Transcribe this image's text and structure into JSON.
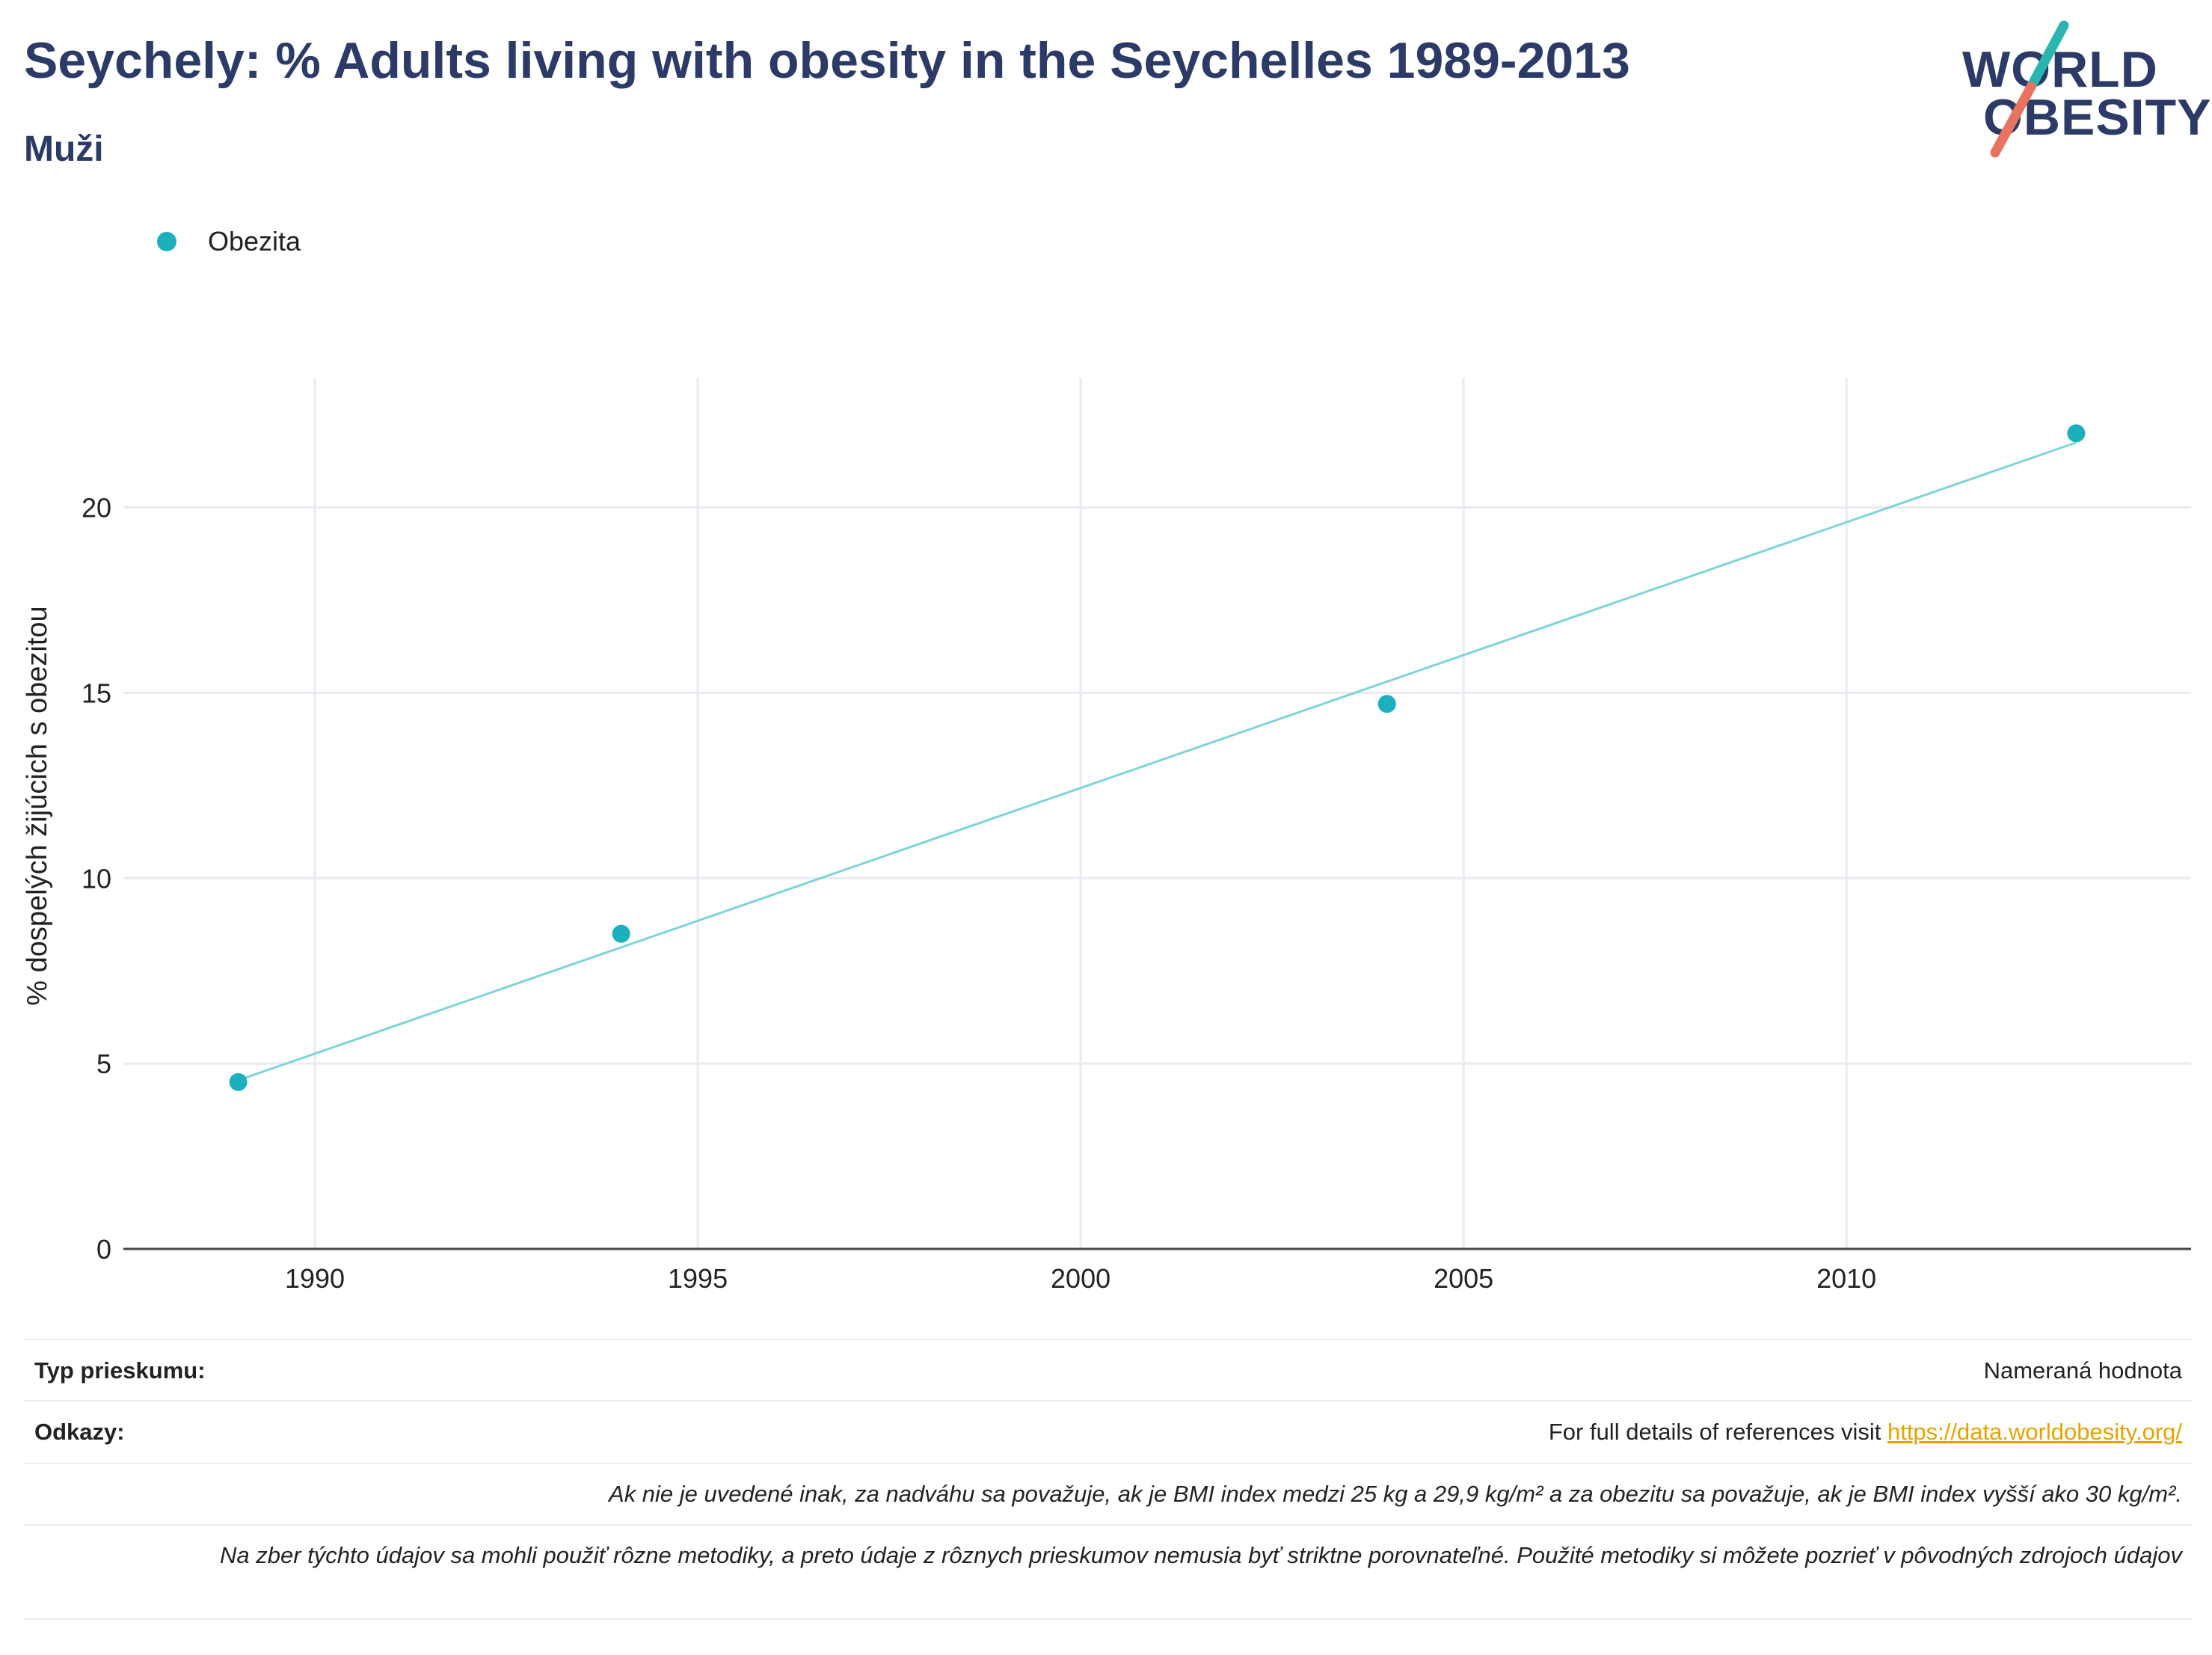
{
  "title": "Seychely: % Adults living with obesity in the Seychelles 1989-2013",
  "subtitle": "Muži",
  "logo": {
    "line1": "WORLD",
    "line2": "OBESITY"
  },
  "colors": {
    "series": "#1ab1bd",
    "trend": "#7fd4db",
    "title": "#2b3a67",
    "link": "#e6a300"
  },
  "chart_data": {
    "type": "scatter",
    "title": "Seychely: % Adults living with obesity in the Seychelles 1989-2013",
    "subtitle": "Muži",
    "xlabel": "",
    "ylabel": "% dospelých žijúcich s obezitou",
    "xlim": [
      1987.5,
      2014.5
    ],
    "ylim": [
      0,
      23.5
    ],
    "xticks": [
      1990,
      1995,
      2000,
      2005,
      2010
    ],
    "yticks": [
      0,
      5,
      10,
      15,
      20
    ],
    "grid": true,
    "legend_position": "top-left",
    "series": [
      {
        "name": "Obezita",
        "x": [
          1989,
          1994,
          2004,
          2013
        ],
        "y": [
          4.5,
          8.5,
          14.7,
          22.0
        ]
      }
    ],
    "trendline": {
      "x": [
        1989,
        2013
      ],
      "y": [
        4.55,
        21.75
      ]
    }
  },
  "footer": {
    "survey_type_label": "Typ prieskumu:",
    "survey_type_value": "Nameraná hodnota",
    "references_label": "Odkazy:",
    "references_text": "For full details of references visit ",
    "references_link": "https://data.worldobesity.org/",
    "note1": "Ak nie je uvedené inak, za nadváhu sa považuje, ak je BMI index medzi 25 kg a 29,9 kg/m² a za obezitu sa považuje, ak je BMI index vyšší ako 30 kg/m².",
    "note2": "Na zber týchto údajov sa mohli použiť rôzne metodiky, a preto údaje z rôznych prieskumov nemusia byť striktne porovnateľné. Použité metodiky si môžete pozrieť v pôvodných zdrojoch údajov"
  }
}
